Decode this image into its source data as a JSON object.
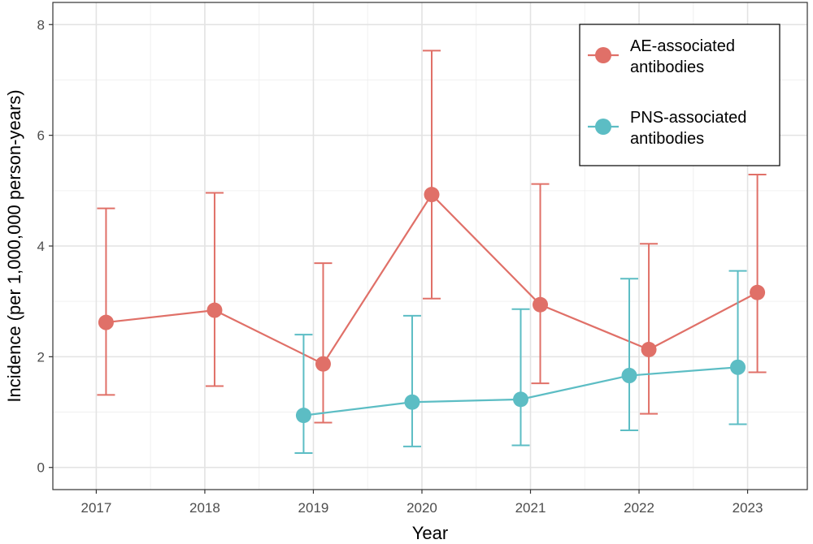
{
  "chart_data": {
    "type": "line",
    "xlabel": "Year",
    "ylabel": "Incidence (per 1,000,000 person-years)",
    "x_ticks": [
      "2017",
      "2018",
      "2019",
      "2020",
      "2021",
      "2022",
      "2023"
    ],
    "y_ticks": [
      0,
      2,
      4,
      6,
      8
    ],
    "xlim": [
      2016.6,
      2023.55
    ],
    "ylim": [
      -0.4,
      8.4
    ],
    "grid": true,
    "legend_position": "top-right",
    "series": [
      {
        "name": "AE-associated antibodies",
        "color": "#E07068",
        "points": [
          {
            "x": 2017,
            "y": 2.62,
            "lo": 1.31,
            "hi": 4.68
          },
          {
            "x": 2018,
            "y": 2.84,
            "lo": 1.47,
            "hi": 4.96
          },
          {
            "x": 2019,
            "y": 1.87,
            "lo": 0.81,
            "hi": 3.69
          },
          {
            "x": 2020,
            "y": 4.93,
            "lo": 3.05,
            "hi": 7.53
          },
          {
            "x": 2021,
            "y": 2.94,
            "lo": 1.52,
            "hi": 5.12
          },
          {
            "x": 2022,
            "y": 2.13,
            "lo": 0.97,
            "hi": 4.04
          },
          {
            "x": 2023,
            "y": 3.16,
            "lo": 1.72,
            "hi": 5.29
          }
        ]
      },
      {
        "name": "PNS-associated antibodies",
        "color": "#5CBDC4",
        "points": [
          {
            "x": 2019,
            "y": 0.94,
            "lo": 0.26,
            "hi": 2.4
          },
          {
            "x": 2020,
            "y": 1.18,
            "lo": 0.38,
            "hi": 2.74
          },
          {
            "x": 2021,
            "y": 1.23,
            "lo": 0.4,
            "hi": 2.86
          },
          {
            "x": 2022,
            "y": 1.66,
            "lo": 0.67,
            "hi": 3.41
          },
          {
            "x": 2023,
            "y": 1.81,
            "lo": 0.78,
            "hi": 3.55
          }
        ]
      }
    ],
    "legend_lines": [
      [
        "AE-associated",
        "antibodies"
      ],
      [
        "PNS-associated",
        "antibodies"
      ]
    ]
  }
}
